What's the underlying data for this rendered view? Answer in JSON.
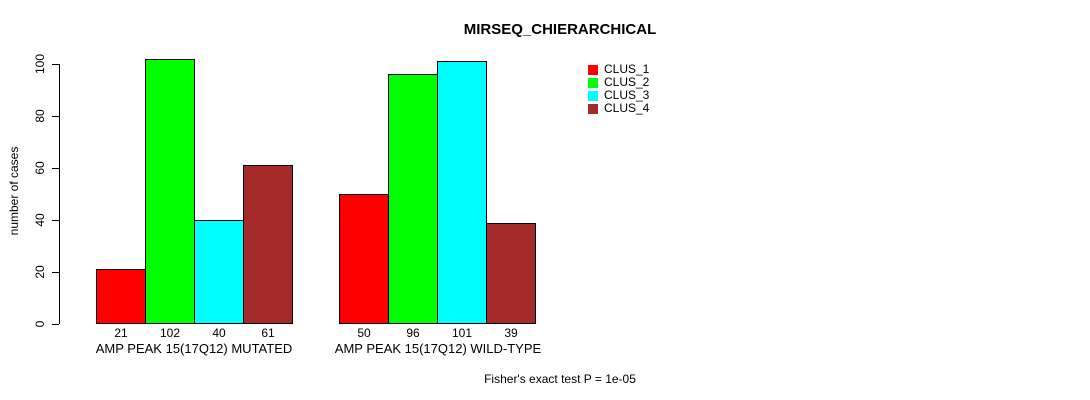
{
  "title": "MIRSEQ_CHIERARCHICAL",
  "footer": "Fisher's exact test P = 1e-05",
  "y_axis": {
    "label": "number of cases",
    "tick_labels": [
      "0",
      "20",
      "40",
      "60",
      "80",
      "100"
    ]
  },
  "legend": {
    "entries": [
      "CLUS_1",
      "CLUS_2",
      "CLUS_3",
      "CLUS_4"
    ]
  },
  "colors": {
    "clus_1": "#FF0000",
    "clus_2": "#00FF00",
    "clus_3": "#00FFFF",
    "clus_4": "#A52A2A",
    "axis": "#000000",
    "background": "#FFFFFF"
  },
  "chart_data": {
    "type": "bar",
    "title": "MIRSEQ_CHIERARCHICAL",
    "xlabel": "",
    "ylabel": "number of cases",
    "ylim": [
      0,
      100
    ],
    "yticks": [
      0,
      20,
      40,
      60,
      80,
      100
    ],
    "grid": false,
    "legend_position": "top-right",
    "bar_value_labels_shown": true,
    "annotation": "Fisher's exact test P = 1e-05",
    "categories": [
      "AMP PEAK 15(17Q12) MUTATED",
      "AMP PEAK 15(17Q12) WILD-TYPE"
    ],
    "series": [
      {
        "name": "CLUS_1",
        "color": "#FF0000",
        "values": [
          21,
          50
        ]
      },
      {
        "name": "CLUS_2",
        "color": "#00FF00",
        "values": [
          102,
          96
        ]
      },
      {
        "name": "CLUS_3",
        "color": "#00FFFF",
        "values": [
          40,
          101
        ]
      },
      {
        "name": "CLUS_4",
        "color": "#A52A2A",
        "values": [
          61,
          39
        ]
      }
    ]
  }
}
